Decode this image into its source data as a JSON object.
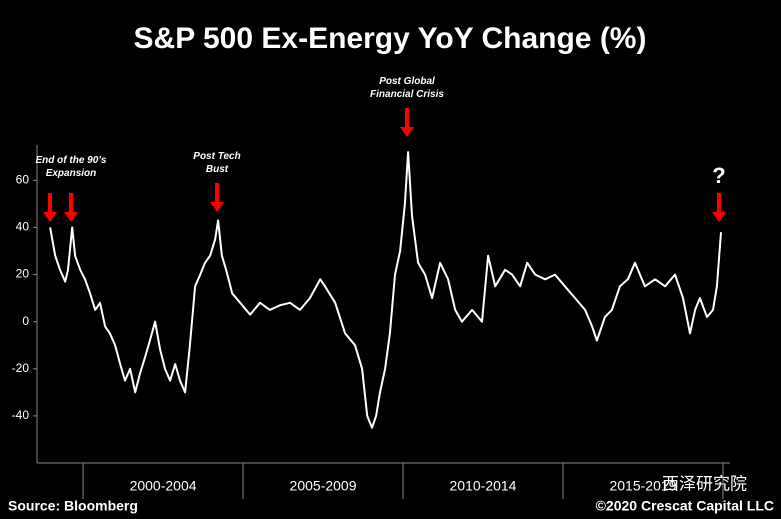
{
  "chart_data": {
    "type": "line",
    "title": "S&P 500 Ex-Energy YoY Change (%)",
    "x": [
      1998.97,
      1999.13,
      1999.28,
      1999.44,
      1999.53,
      1999.66,
      1999.75,
      1999.91,
      2000.06,
      2000.22,
      2000.38,
      2000.53,
      2000.69,
      2000.84,
      2001.0,
      2001.16,
      2001.31,
      2001.47,
      2001.63,
      2001.78,
      2001.94,
      2002.09,
      2002.25,
      2002.41,
      2002.56,
      2002.72,
      2002.88,
      2003.03,
      2003.19,
      2003.34,
      2003.5,
      2003.66,
      2003.81,
      2003.97,
      2004.13,
      2004.22,
      2004.34,
      2004.47,
      2004.66,
      2004.91,
      2005.22,
      2005.53,
      2005.84,
      2006.16,
      2006.47,
      2006.78,
      2007.09,
      2007.41,
      2007.56,
      2007.88,
      2008.19,
      2008.5,
      2008.72,
      2008.88,
      2009.03,
      2009.16,
      2009.28,
      2009.44,
      2009.59,
      2009.75,
      2009.91,
      2010.06,
      2010.16,
      2010.28,
      2010.47,
      2010.69,
      2010.91,
      2011.16,
      2011.41,
      2011.63,
      2011.84,
      2012.16,
      2012.47,
      2012.66,
      2012.88,
      2013.19,
      2013.41,
      2013.66,
      2013.88,
      2014.13,
      2014.44,
      2014.75,
      2015.06,
      2015.38,
      2015.69,
      2015.91,
      2016.06,
      2016.31,
      2016.53,
      2016.78,
      2017.03,
      2017.25,
      2017.56,
      2017.88,
      2018.19,
      2018.5,
      2018.75,
      2018.97,
      2019.13,
      2019.28,
      2019.5,
      2019.69,
      2019.81,
      2019.94
    ],
    "series": [
      {
        "color": "#ffffff",
        "values": [
          40,
          28,
          22,
          17,
          22,
          40,
          28,
          22,
          18,
          12,
          5,
          8,
          -2,
          -5,
          -10,
          -18,
          -25,
          -20,
          -30,
          -22,
          -15,
          -8,
          0,
          -12,
          -20,
          -25,
          -18,
          -25,
          -30,
          -10,
          15,
          20,
          25,
          28,
          35,
          43,
          28,
          22,
          12,
          8,
          3,
          8,
          5,
          7,
          8,
          5,
          10,
          18,
          15,
          8,
          -5,
          -10,
          -20,
          -40,
          -45,
          -40,
          -30,
          -20,
          -5,
          20,
          30,
          50,
          72,
          45,
          25,
          20,
          10,
          25,
          18,
          5,
          0,
          5,
          0,
          28,
          15,
          22,
          20,
          15,
          25,
          20,
          18,
          20,
          15,
          10,
          5,
          -2,
          -8,
          2,
          5,
          15,
          18,
          25,
          15,
          18,
          15,
          20,
          10,
          -5,
          5,
          10,
          2,
          5,
          15,
          38
        ]
      }
    ],
    "xlim": [
      1998.56,
      2020.22
    ],
    "xticks": [
      2000,
      2005,
      2010,
      2015,
      2020
    ],
    "x_labels": [
      "2000-2004",
      "2005-2009",
      "2010-2014",
      "2015-2019"
    ],
    "ylim": [
      -60,
      75
    ],
    "yticks": [
      -40,
      -20,
      0,
      20,
      40,
      60
    ],
    "annotations": [
      {
        "lines": [
          "End of the 90’s",
          "Expansion"
        ]
      },
      {
        "lines": [
          "Post Tech",
          "Bust"
        ]
      },
      {
        "lines": [
          "Post Global",
          "Financial Crisis"
        ]
      },
      {
        "lines": [
          "?"
        ]
      }
    ],
    "source": "Source: Bloomberg",
    "copyright": "©2020 Crescat Capital LLC",
    "watermark": "西泽研究院"
  }
}
